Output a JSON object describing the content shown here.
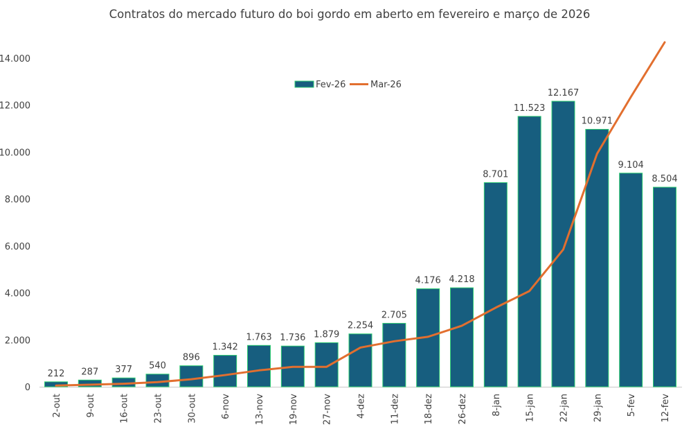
{
  "chart_data": {
    "type": "bar",
    "title": "Contratos do mercado futuro do boi gordo em aberto em fevereiro e março de 2026",
    "xlabel": "",
    "ylabel": "",
    "ylim": [
      0,
      14000
    ],
    "yticks": [
      0,
      2000,
      4000,
      6000,
      8000,
      10000,
      12000,
      14000
    ],
    "ytick_labels": [
      "0",
      "2.000",
      "4.000",
      "6.000",
      "8.000",
      "10.000",
      "12.000",
      "14.000"
    ],
    "grid": false,
    "legend_position": "top-center",
    "categories": [
      "2-out",
      "9-out",
      "16-out",
      "23-out",
      "30-out",
      "6-nov",
      "13-nov",
      "19-nov",
      "27-nov",
      "4-dez",
      "11-dez",
      "18-dez",
      "26-dez",
      "8-jan",
      "15-jan",
      "22-jan",
      "29-jan",
      "5-fev",
      "12-fev"
    ],
    "series": [
      {
        "name": "Fev-26",
        "type": "bar",
        "color": "#175E7F",
        "edge_color": "#2ECC71",
        "values": [
          212,
          287,
          377,
          540,
          896,
          1342,
          1763,
          1736,
          1879,
          2254,
          2705,
          4176,
          4218,
          8701,
          11523,
          12167,
          10971,
          9104,
          8504
        ],
        "data_labels": [
          "212",
          "287",
          "377",
          "540",
          "896",
          "1.342",
          "1.763",
          "1.736",
          "1.879",
          "2.254",
          "2.705",
          "4.176",
          "4.218",
          "8.701",
          "11.523",
          "12.167",
          "10.971",
          "9.104",
          "8.504"
        ]
      },
      {
        "name": "Mar-26",
        "type": "line",
        "color": "#E26F2F",
        "values": [
          50,
          90,
          130,
          200,
          320,
          500,
          700,
          850,
          850,
          1670,
          1940,
          2130,
          2600,
          3370,
          4080,
          5850,
          9930,
          12350,
          14680
        ]
      }
    ]
  }
}
